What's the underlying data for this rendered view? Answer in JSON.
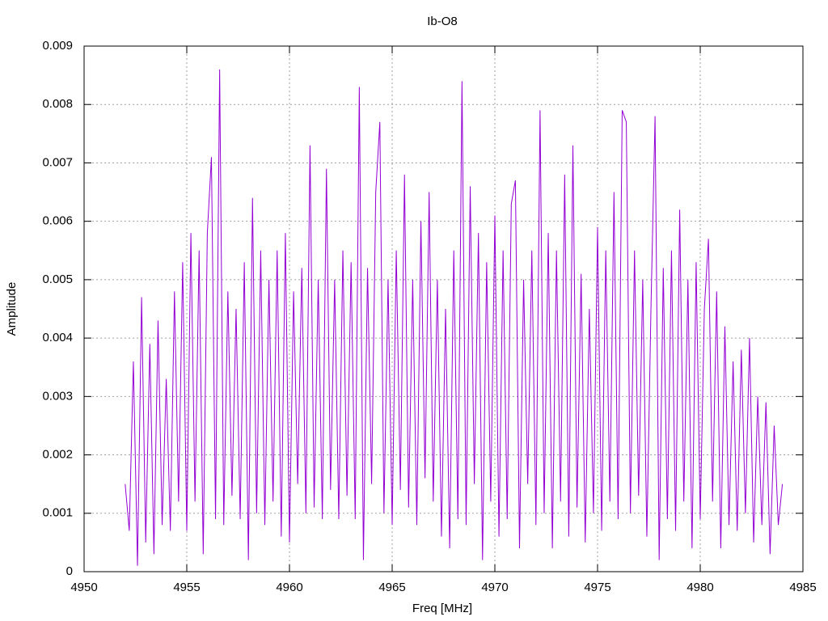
{
  "chart_data": {
    "type": "line",
    "title": "Ib-O8",
    "x_label": "Freq [MHz]",
    "y_label": "Amplitude",
    "xlim": [
      4950,
      4985
    ],
    "xticks": [
      4950,
      4955,
      4960,
      4965,
      4970,
      4975,
      4980,
      4985
    ],
    "ylim": [
      0,
      0.009
    ],
    "yticks": [
      0,
      0.001,
      0.002,
      0.003,
      0.004,
      0.005,
      0.006,
      0.007,
      0.008,
      0.009
    ],
    "grid": true,
    "x": [
      4952,
      4952.2,
      4952.4,
      4952.6,
      4952.8,
      4953,
      4953.2,
      4953.4,
      4953.6,
      4953.8,
      4954,
      4954.2,
      4954.4,
      4954.6,
      4954.8,
      4955,
      4955.2,
      4955.4,
      4955.6,
      4955.8,
      4956,
      4956.2,
      4956.4,
      4956.6,
      4956.8,
      4957,
      4957.2,
      4957.4,
      4957.6,
      4957.8,
      4958,
      4958.2,
      4958.4,
      4958.6,
      4958.8,
      4959,
      4959.2,
      4959.4,
      4959.6,
      4959.8,
      4960,
      4960.2,
      4960.4,
      4960.6,
      4960.8,
      4961,
      4961.2,
      4961.4,
      4961.6,
      4961.8,
      4962,
      4962.2,
      4962.4,
      4962.6,
      4962.8,
      4963,
      4963.2,
      4963.4,
      4963.6,
      4963.8,
      4964,
      4964.2,
      4964.4,
      4964.6,
      4964.8,
      4965,
      4965.2,
      4965.4,
      4965.6,
      4965.8,
      4966,
      4966.2,
      4966.4,
      4966.6,
      4966.8,
      4967,
      4967.2,
      4967.4,
      4967.6,
      4967.8,
      4968,
      4968.2,
      4968.4,
      4968.6,
      4968.8,
      4969,
      4969.2,
      4969.4,
      4969.6,
      4969.8,
      4970,
      4970.2,
      4970.4,
      4970.6,
      4970.8,
      4971,
      4971.2,
      4971.4,
      4971.6,
      4971.8,
      4972,
      4972.2,
      4972.4,
      4972.6,
      4972.8,
      4973,
      4973.2,
      4973.4,
      4973.6,
      4973.8,
      4974,
      4974.2,
      4974.4,
      4974.6,
      4974.8,
      4975,
      4975.2,
      4975.4,
      4975.6,
      4975.8,
      4976,
      4976.2,
      4976.4,
      4976.6,
      4976.8,
      4977,
      4977.2,
      4977.4,
      4977.6,
      4977.8,
      4978,
      4978.2,
      4978.4,
      4978.6,
      4978.8,
      4979,
      4979.2,
      4979.4,
      4979.6,
      4979.8,
      4980,
      4980.2,
      4980.4,
      4980.6,
      4980.8,
      4981,
      4981.2,
      4981.4,
      4981.6,
      4981.8,
      4982,
      4982.2,
      4982.4,
      4982.6,
      4982.8,
      4983,
      4983.2,
      4983.4,
      4983.6,
      4983.8,
      4984
    ],
    "series": [
      {
        "color": "#9400d3",
        "values": [
          0.0015,
          0.0007,
          0.0036,
          0.0001,
          0.0047,
          0.0005,
          0.0039,
          0.0003,
          0.0043,
          0.0008,
          0.0033,
          0.0007,
          0.0048,
          0.0012,
          0.0053,
          0.0007,
          0.0058,
          0.0012,
          0.0055,
          0.0003,
          0.0058,
          0.0071,
          0.0009,
          0.0086,
          0.0008,
          0.0048,
          0.0013,
          0.0045,
          0.0009,
          0.0053,
          0.0002,
          0.0064,
          0.001,
          0.0055,
          0.0008,
          0.005,
          0.0012,
          0.0055,
          0.0006,
          0.0058,
          0.0005,
          0.0048,
          0.0015,
          0.0052,
          0.001,
          0.0073,
          0.0011,
          0.005,
          0.0009,
          0.0069,
          0.0014,
          0.005,
          0.0009,
          0.0055,
          0.0013,
          0.0053,
          0.0009,
          0.0083,
          0.0002,
          0.0052,
          0.0015,
          0.0065,
          0.0077,
          0.001,
          0.005,
          0.0008,
          0.0055,
          0.0014,
          0.0068,
          0.0011,
          0.005,
          0.0008,
          0.006,
          0.0016,
          0.0065,
          0.0012,
          0.005,
          0.0006,
          0.0045,
          0.0004,
          0.0055,
          0.0009,
          0.0084,
          0.0008,
          0.0066,
          0.0015,
          0.0058,
          0.0002,
          0.0053,
          0.0012,
          0.0061,
          0.0006,
          0.0055,
          0.0009,
          0.0063,
          0.0067,
          0.0004,
          0.005,
          0.0015,
          0.0055,
          0.0008,
          0.0079,
          0.001,
          0.0058,
          0.0004,
          0.0055,
          0.0012,
          0.0068,
          0.0006,
          0.0073,
          0.0011,
          0.0051,
          0.0005,
          0.0045,
          0.001,
          0.0059,
          0.0007,
          0.0055,
          0.0012,
          0.0065,
          0.0009,
          0.0079,
          0.0077,
          0.001,
          0.0055,
          0.0013,
          0.005,
          0.0006,
          0.0045,
          0.0078,
          0.0002,
          0.0052,
          0.0009,
          0.0055,
          0.0007,
          0.0062,
          0.0012,
          0.005,
          0.0004,
          0.0053,
          0.0009,
          0.0045,
          0.0057,
          0.0012,
          0.0048,
          0.0004,
          0.0042,
          0.0008,
          0.0036,
          0.0007,
          0.0038,
          0.001,
          0.004,
          0.0005,
          0.003,
          0.0008,
          0.0029,
          0.0003,
          0.0025,
          0.0008,
          0.0015
        ]
      }
    ]
  }
}
